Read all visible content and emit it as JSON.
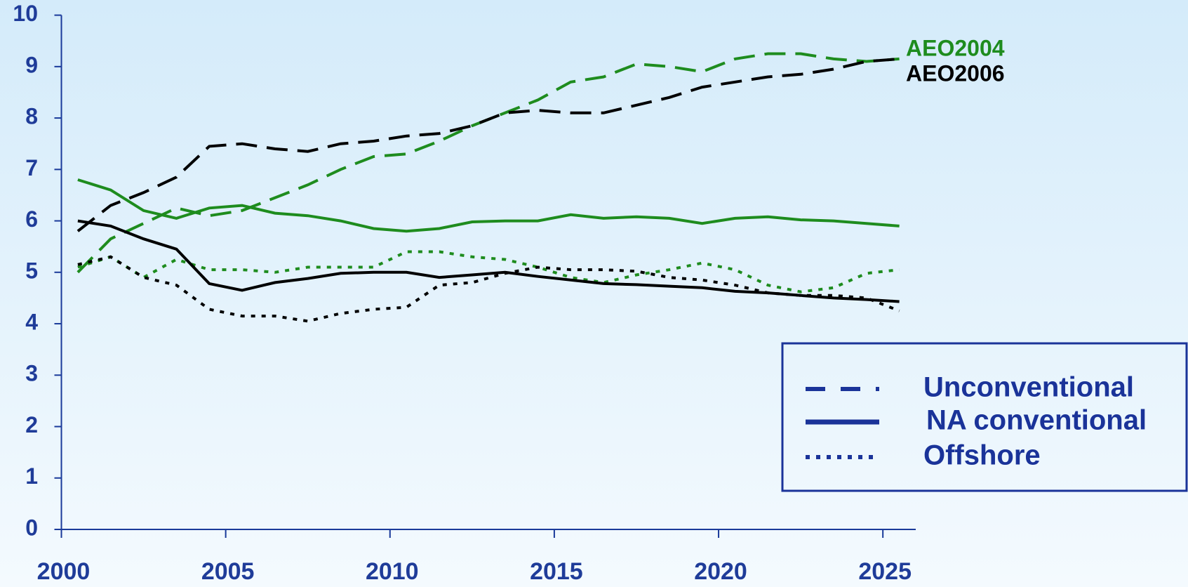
{
  "chart_data": {
    "type": "line",
    "x": [
      2000.5,
      2001.5,
      2002.5,
      2003.5,
      2004.5,
      2005.5,
      2006.5,
      2007.5,
      2008.5,
      2009.5,
      2010.5,
      2011.5,
      2012.5,
      2013.5,
      2014.5,
      2015.5,
      2016.5,
      2017.5,
      2018.5,
      2019.5,
      2020.5,
      2021.5,
      2022.5,
      2023.5,
      2024.5,
      2025.5
    ],
    "xlim": [
      2000,
      2026
    ],
    "xticks": [
      2000,
      2005,
      2010,
      2015,
      2020,
      2025
    ],
    "ylim": [
      0,
      10
    ],
    "yticks": [
      0,
      1,
      2,
      3,
      4,
      5,
      6,
      7,
      8,
      9,
      10
    ],
    "grid": false,
    "legend_position": "lower right",
    "legend_color": "#1a3399",
    "line_styles": [
      {
        "name": "Unconventional",
        "dash": "dashed"
      },
      {
        "name": "NA conventional",
        "dash": "solid"
      },
      {
        "name": "Offshore",
        "dash": "dotted"
      }
    ],
    "series": [
      {
        "name": "AEO2004",
        "color": "#1e8c1e",
        "lines": [
          [
            5.0,
            5.65,
            5.95,
            6.25,
            6.1,
            6.2,
            6.45,
            6.7,
            7.0,
            7.25,
            7.3,
            7.55,
            7.85,
            8.1,
            8.35,
            8.7,
            8.8,
            9.05,
            9.0,
            8.9,
            9.15,
            9.25,
            9.25,
            9.15,
            9.1,
            9.15
          ],
          [
            6.8,
            6.6,
            6.2,
            6.05,
            6.25,
            6.3,
            6.15,
            6.1,
            6.0,
            5.85,
            5.8,
            5.85,
            5.98,
            6.0,
            6.0,
            6.12,
            6.05,
            6.08,
            6.05,
            5.95,
            6.05,
            6.08,
            6.02,
            6.0,
            5.95,
            5.9
          ],
          [
            5.1,
            5.3,
            4.9,
            5.25,
            5.05,
            5.05,
            5.0,
            5.1,
            5.1,
            5.1,
            5.4,
            5.4,
            5.3,
            5.25,
            5.1,
            4.9,
            4.8,
            4.95,
            5.05,
            5.18,
            5.05,
            4.75,
            4.62,
            4.7,
            4.98,
            5.05
          ]
        ]
      },
      {
        "name": "AEO2006",
        "color": "#000000",
        "lines": [
          [
            5.8,
            6.3,
            6.55,
            6.85,
            7.45,
            7.5,
            7.4,
            7.35,
            7.5,
            7.55,
            7.65,
            7.7,
            7.85,
            8.1,
            8.15,
            8.1,
            8.1,
            8.25,
            8.4,
            8.6,
            8.7,
            8.8,
            8.85,
            8.95,
            9.1,
            9.15
          ],
          [
            6.0,
            5.9,
            5.65,
            5.45,
            4.78,
            4.65,
            4.8,
            4.88,
            4.98,
            5.0,
            5.0,
            4.9,
            4.95,
            5.0,
            4.92,
            4.85,
            4.78,
            4.76,
            4.73,
            4.7,
            4.63,
            4.6,
            4.55,
            4.5,
            4.47,
            4.43
          ],
          [
            5.15,
            5.3,
            4.9,
            4.75,
            4.28,
            4.15,
            4.15,
            4.05,
            4.2,
            4.28,
            4.32,
            4.75,
            4.8,
            4.98,
            5.1,
            5.05,
            5.05,
            5.02,
            4.9,
            4.85,
            4.75,
            4.6,
            4.55,
            4.55,
            4.5,
            4.25
          ]
        ]
      }
    ]
  }
}
